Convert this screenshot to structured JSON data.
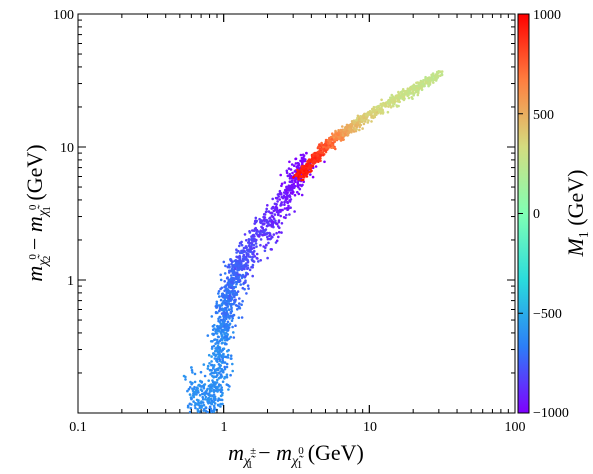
{
  "chart_data": {
    "type": "scatter",
    "title": "",
    "xlabel": {
      "m": "m",
      "sub1": "χ̃",
      "sup1": "±",
      "idx1": "1",
      "minus": " − ",
      "sub2": "χ̃",
      "sup2": "0",
      "idx2": "1",
      "unit": " (GeV)"
    },
    "ylabel": {
      "m": "m",
      "sub1": "χ̃",
      "sup1": "0",
      "idx1": "2",
      "minus": " − ",
      "sub2": "χ̃",
      "sup2": "0",
      "idx2": "1",
      "unit": " (GeV)"
    },
    "xscale": "log",
    "yscale": "log",
    "xlim": [
      0.1,
      100
    ],
    "ylim": [
      0.1,
      100
    ],
    "x_tick_labels": [
      "0.1",
      "1",
      "10",
      "100"
    ],
    "y_tick_labels": [
      "1",
      "10",
      "100"
    ],
    "grid": false,
    "colorbar": {
      "label": "M",
      "label_sub": "1",
      "label_unit": " (GeV)",
      "range": [
        -1000,
        1000
      ],
      "tick_values": [
        -1000,
        -500,
        0,
        500,
        1000
      ],
      "tick_labels": [
        "−1000",
        "−500",
        "0",
        "500",
        "1000"
      ],
      "colormap": "rainbow",
      "stops": [
        "#8000ff",
        "#2c7ef7",
        "#2adcdc",
        "#80ffb4",
        "#d4dc7f",
        "#ff7f40",
        "#ff0000"
      ]
    },
    "series": [
      {
        "description_group": "lower branch (M1 < 0)",
        "points": [
          {
            "x": 0.6,
            "y": 0.22,
            "c": -600
          },
          {
            "x": 0.7,
            "y": 0.15,
            "c": -600
          },
          {
            "x": 0.8,
            "y": 0.12,
            "c": -620
          },
          {
            "x": 0.85,
            "y": 0.2,
            "c": -620
          },
          {
            "x": 0.9,
            "y": 0.3,
            "c": -600
          },
          {
            "x": 0.95,
            "y": 0.45,
            "c": -620
          },
          {
            "x": 1.0,
            "y": 0.6,
            "c": -650
          },
          {
            "x": 1.05,
            "y": 0.8,
            "c": -680
          },
          {
            "x": 1.1,
            "y": 1.0,
            "c": -700
          },
          {
            "x": 1.2,
            "y": 1.3,
            "c": -720
          },
          {
            "x": 1.3,
            "y": 1.6,
            "c": -760
          },
          {
            "x": 1.5,
            "y": 2.0,
            "c": -800
          },
          {
            "x": 1.8,
            "y": 2.7,
            "c": -850
          },
          {
            "x": 2.2,
            "y": 3.5,
            "c": -900
          },
          {
            "x": 2.7,
            "y": 5.0,
            "c": -950
          },
          {
            "x": 3.2,
            "y": 7.0,
            "c": -980
          },
          {
            "x": 3.7,
            "y": 9.0,
            "c": -1000
          }
        ]
      },
      {
        "description_group": "upper branch (M1 > 0)",
        "points": [
          {
            "x": 3.3,
            "y": 6.2,
            "c": 950
          },
          {
            "x": 4.0,
            "y": 8.0,
            "c": 900
          },
          {
            "x": 5.0,
            "y": 10.5,
            "c": 800
          },
          {
            "x": 6.0,
            "y": 12.5,
            "c": 650
          },
          {
            "x": 7.0,
            "y": 14.0,
            "c": 520
          },
          {
            "x": 9.0,
            "y": 17.0,
            "c": 400
          },
          {
            "x": 12.0,
            "y": 21.0,
            "c": 330
          },
          {
            "x": 16.0,
            "y": 25.0,
            "c": 300
          },
          {
            "x": 22.0,
            "y": 30.0,
            "c": 280
          },
          {
            "x": 30.0,
            "y": 37.0,
            "c": 260
          }
        ]
      }
    ]
  }
}
